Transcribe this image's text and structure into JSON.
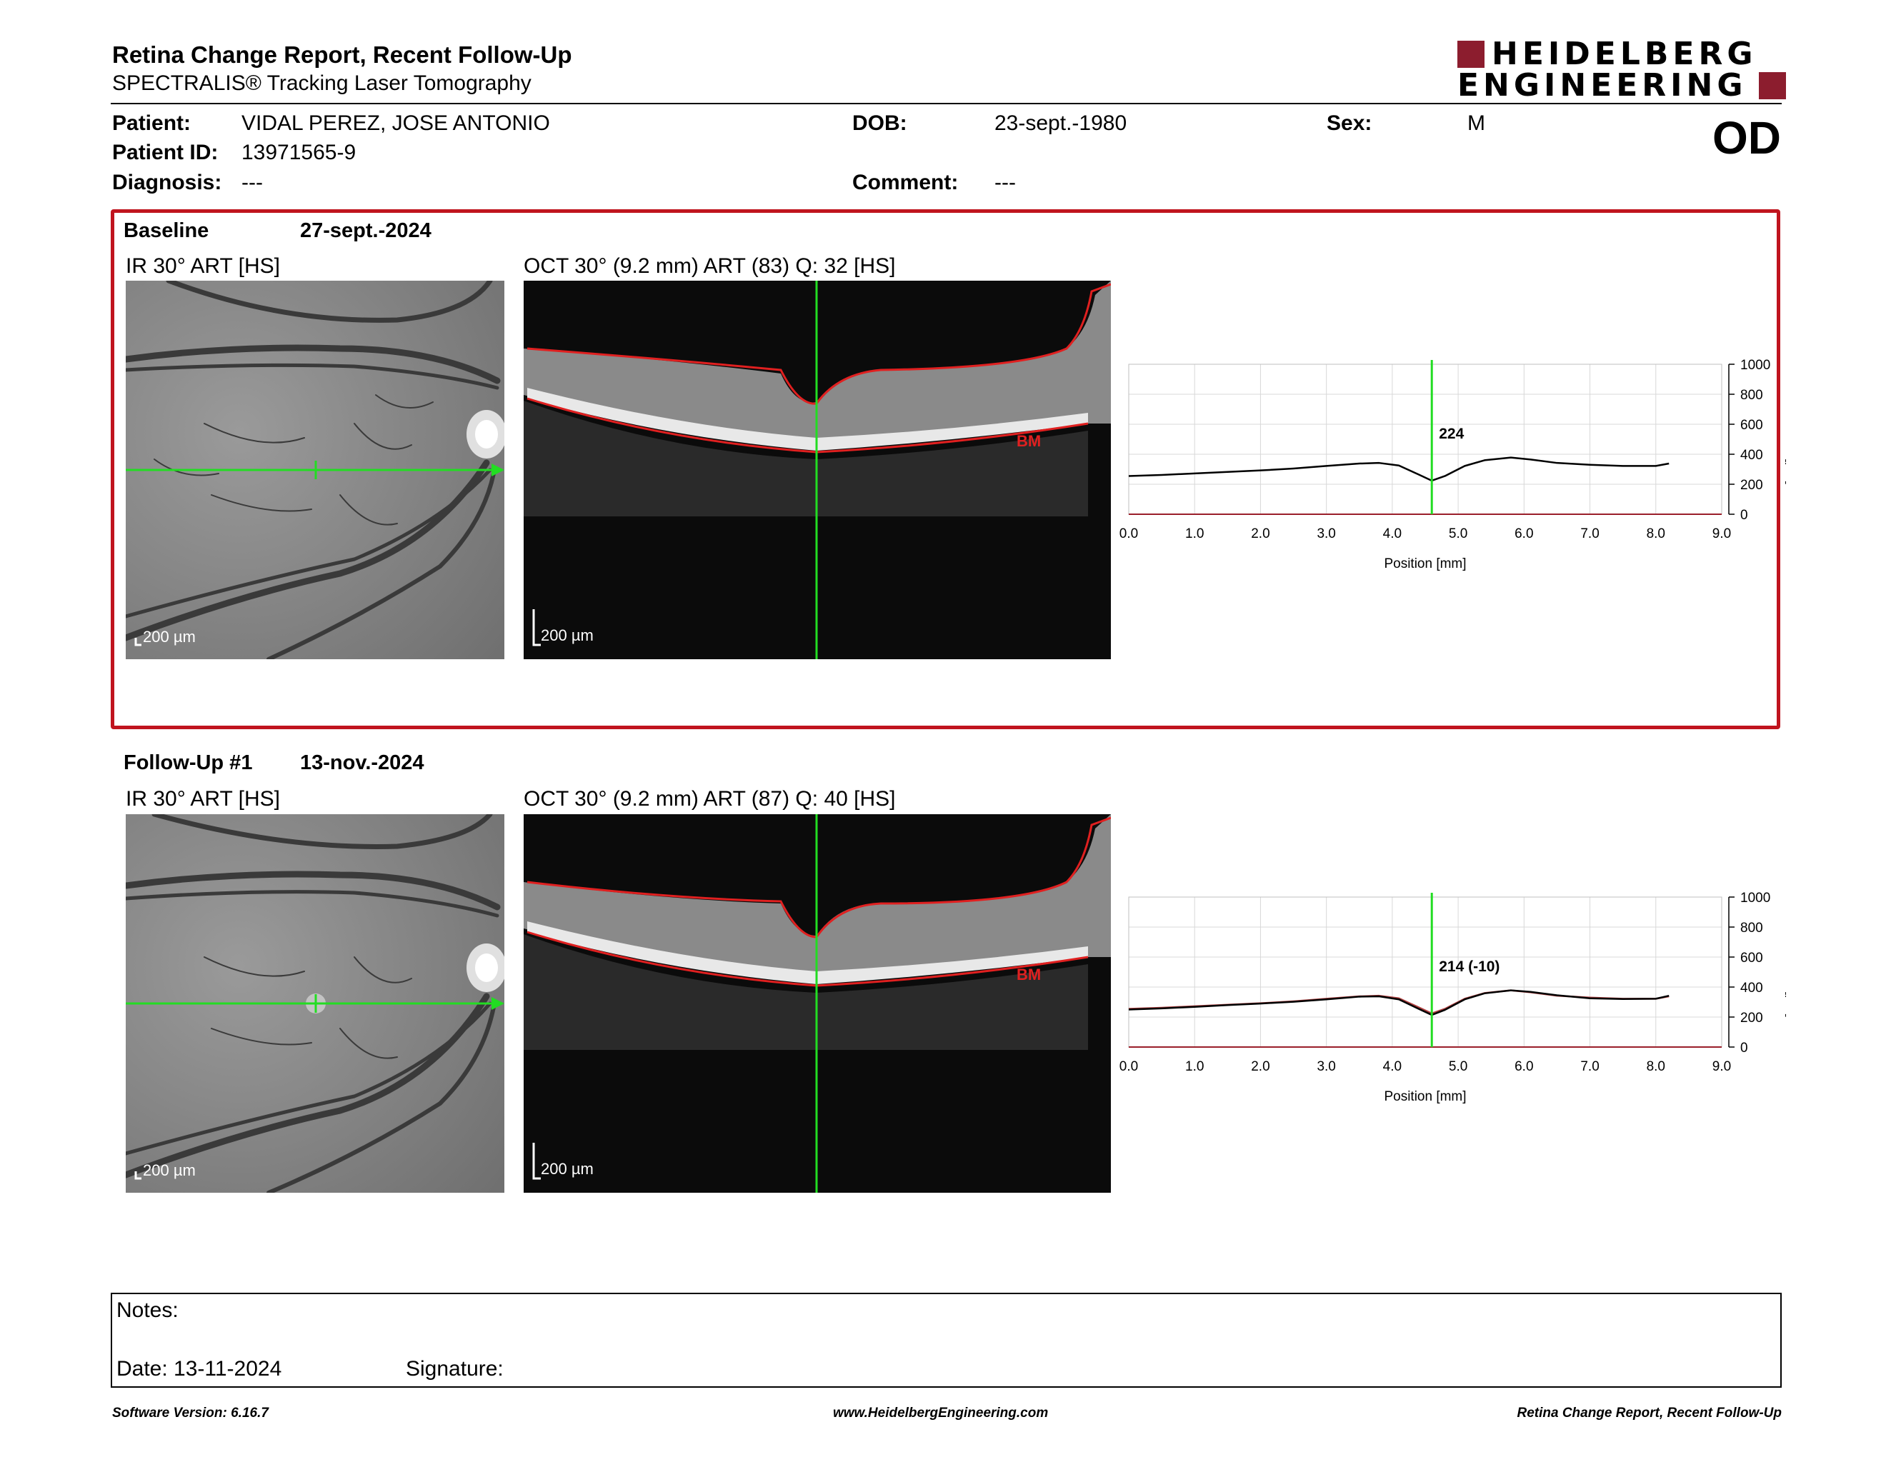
{
  "header": {
    "title": "Retina Change Report, Recent Follow-Up",
    "subtitle": "SPECTRALIS® Tracking Laser Tomography",
    "logo_line1": "HEIDELBERG",
    "logo_line2": "ENGINEERING",
    "eye": "OD"
  },
  "patient": {
    "name_label": "Patient:",
    "name": "VIDAL PEREZ, JOSE ANTONIO",
    "id_label": "Patient ID:",
    "id": "13971565-9",
    "diagnosis_label": "Diagnosis:",
    "diagnosis": "---",
    "dob_label": "DOB:",
    "dob": "23-sept.-1980",
    "comment_label": "Comment:",
    "comment": "---",
    "sex_label": "Sex:",
    "sex": "M"
  },
  "colors": {
    "highlight_border": "#c0141e",
    "scan_line": "#22dd22",
    "segmentation": "#e02020",
    "logo": "#8c1d2e"
  },
  "baseline": {
    "label": "Baseline",
    "date": "27-sept.-2024",
    "ir_caption": "IR 30° ART [HS]",
    "oct_caption": "OCT 30° (9.2 mm) ART (83) Q: 32 [HS]",
    "ir_scale": "200 µm",
    "oct_scale": "200 µm",
    "bm_label": "BM"
  },
  "followup": {
    "label": "Follow-Up #1",
    "date": "13-nov.-2024",
    "ir_caption": "IR 30° ART [HS]",
    "oct_caption": "OCT 30° (9.2 mm) ART (87) Q: 40 [HS]",
    "ir_scale": "200 µm",
    "oct_scale": "200 µm",
    "bm_label": "BM"
  },
  "chart_data": [
    {
      "type": "line",
      "xlabel": "Position [mm]",
      "ylabel": "Thickness [µm]",
      "xlim": [
        0,
        9
      ],
      "ylim": [
        0,
        1000
      ],
      "x_ticks": [
        "0.0",
        "1.0",
        "2.0",
        "3.0",
        "4.0",
        "5.0",
        "6.0",
        "7.0",
        "8.0",
        "9.0"
      ],
      "y_ticks": [
        "0",
        "200",
        "400",
        "600",
        "800",
        "1000"
      ],
      "cursor_x": 4.6,
      "cursor_label": "224",
      "series": [
        {
          "x": [
            0.0,
            0.5,
            1.0,
            1.5,
            2.0,
            2.5,
            3.0,
            3.5,
            3.8,
            4.1,
            4.4,
            4.6,
            4.8,
            5.1,
            5.4,
            5.8,
            6.1,
            6.5,
            7.0,
            7.5,
            8.0,
            8.2
          ],
          "y": [
            255,
            262,
            272,
            282,
            292,
            305,
            322,
            338,
            342,
            325,
            265,
            224,
            255,
            322,
            360,
            378,
            365,
            342,
            330,
            322,
            322,
            338
          ]
        }
      ]
    },
    {
      "type": "line",
      "xlabel": "Position [mm]",
      "ylabel": "Thickness [µm]",
      "xlim": [
        0,
        9
      ],
      "ylim": [
        0,
        1000
      ],
      "x_ticks": [
        "0.0",
        "1.0",
        "2.0",
        "3.0",
        "4.0",
        "5.0",
        "6.0",
        "7.0",
        "8.0",
        "9.0"
      ],
      "y_ticks": [
        "0",
        "200",
        "400",
        "600",
        "800",
        "1000"
      ],
      "cursor_x": 4.6,
      "cursor_label": "214 (-10)",
      "series": [
        {
          "x": [
            0.0,
            0.5,
            1.0,
            1.5,
            2.0,
            2.5,
            3.0,
            3.5,
            3.8,
            4.1,
            4.4,
            4.6,
            4.8,
            5.1,
            5.4,
            5.8,
            6.1,
            6.5,
            7.0,
            7.5,
            8.0,
            8.2
          ],
          "y": [
            250,
            258,
            268,
            280,
            290,
            302,
            318,
            336,
            338,
            318,
            255,
            214,
            248,
            318,
            358,
            378,
            368,
            345,
            325,
            320,
            322,
            342
          ]
        },
        {
          "x": [
            0.0,
            0.5,
            1.0,
            1.5,
            2.0,
            2.5,
            3.0,
            3.5,
            3.8,
            4.1,
            4.4,
            4.6,
            4.8,
            5.1,
            5.4,
            5.8,
            6.1,
            6.5,
            7.0,
            7.5,
            8.0,
            8.2
          ],
          "y": [
            255,
            262,
            272,
            282,
            292,
            305,
            322,
            338,
            342,
            325,
            265,
            224,
            255,
            322,
            360,
            378,
            365,
            342,
            330,
            322,
            322,
            338
          ]
        }
      ]
    }
  ],
  "notes": {
    "notes_label": "Notes:",
    "date_label": "Date: 13-11-2024",
    "signature_label": "Signature:"
  },
  "footer": {
    "software": "Software Version: 6.16.7",
    "website": "www.HeidelbergEngineering.com",
    "report_name": "Retina Change Report, Recent Follow-Up"
  }
}
